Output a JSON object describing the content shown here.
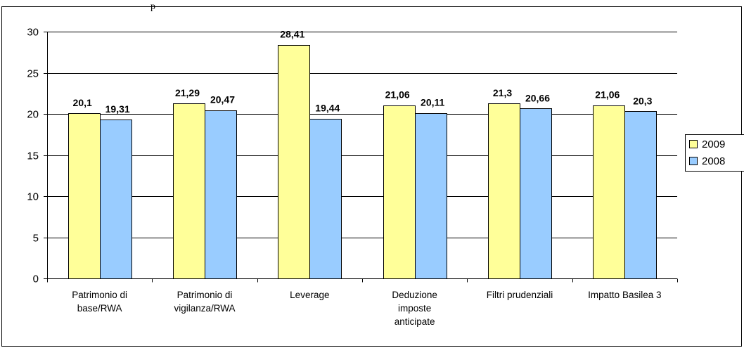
{
  "title_text": "p",
  "chart_data": {
    "type": "bar",
    "categories": [
      [
        "Patrimonio di",
        "base/RWA"
      ],
      [
        "Patrimonio di",
        "vigilanza/RWA"
      ],
      [
        "Leverage"
      ],
      [
        "Deduzione",
        "imposte",
        "anticipate"
      ],
      [
        "Filtri prudenziali"
      ],
      [
        "Impatto Basilea 3"
      ]
    ],
    "series": [
      {
        "name": "2009",
        "values": [
          20.1,
          21.29,
          28.41,
          21.06,
          21.3,
          21.06
        ],
        "labels": [
          "20,1",
          "21,29",
          "28,41",
          "21,06",
          "21,3",
          "21,06"
        ],
        "color": "#FFFF99"
      },
      {
        "name": "2008",
        "values": [
          19.31,
          20.47,
          19.44,
          20.11,
          20.66,
          20.3
        ],
        "labels": [
          "19,31",
          "20,47",
          "19,44",
          "20,11",
          "20,66",
          "20,3"
        ],
        "color": "#99CCFF"
      }
    ],
    "ylim": [
      0,
      30
    ],
    "yticks": [
      0,
      5,
      10,
      15,
      20,
      25,
      30
    ],
    "xlabel": "",
    "ylabel": "",
    "grid": true,
    "legend_position": "right"
  }
}
